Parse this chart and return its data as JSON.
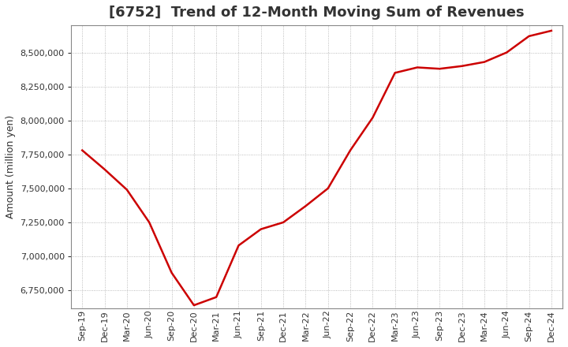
{
  "title": "[6752]  Trend of 12-Month Moving Sum of Revenues",
  "ylabel": "Amount (million yen)",
  "line_color": "#cc0000",
  "background_color": "#ffffff",
  "grid_color": "#aaaaaa",
  "title_fontsize": 13,
  "label_fontsize": 9,
  "tick_fontsize": 8,
  "x_labels": [
    "Sep-19",
    "Dec-19",
    "Mar-20",
    "Jun-20",
    "Sep-20",
    "Dec-20",
    "Mar-21",
    "Jun-21",
    "Sep-21",
    "Dec-21",
    "Mar-22",
    "Jun-22",
    "Sep-22",
    "Dec-22",
    "Mar-23",
    "Jun-23",
    "Sep-23",
    "Dec-23",
    "Mar-24",
    "Jun-24",
    "Sep-24",
    "Dec-24"
  ],
  "y_values": [
    7780000,
    7640000,
    7490000,
    7250000,
    6880000,
    6640000,
    6700000,
    7080000,
    7200000,
    7250000,
    7370000,
    7500000,
    7780000,
    8020000,
    8350000,
    8390000,
    8380000,
    8400000,
    8430000,
    8500000,
    8620000,
    8660000
  ],
  "ylim_min": 6620000,
  "ylim_max": 8700000,
  "yticks": [
    6750000,
    7000000,
    7250000,
    7500000,
    7750000,
    8000000,
    8250000,
    8500000
  ],
  "line_width": 1.8
}
